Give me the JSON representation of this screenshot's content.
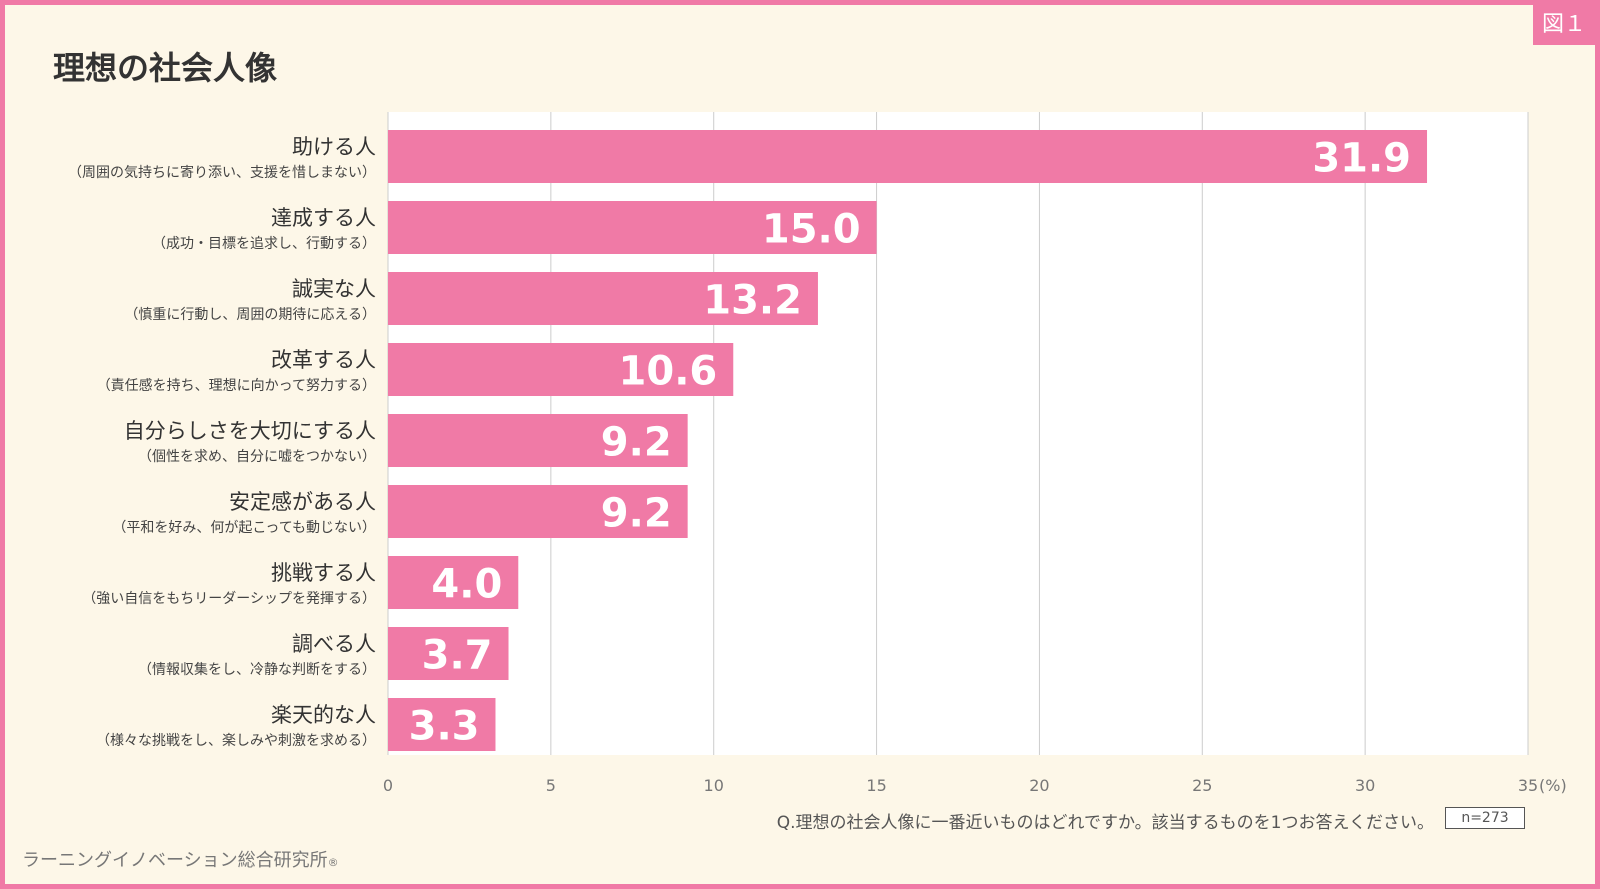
{
  "figure_label": "図１",
  "chart_data": {
    "type": "bar",
    "orientation": "horizontal",
    "title": "理想の社会人像",
    "categories": [
      {
        "label": "助ける人",
        "sublabel": "（周囲の気持ちに寄り添い、支援を惜しまない）"
      },
      {
        "label": "達成する人",
        "sublabel": "（成功・目標を追求し、行動する）"
      },
      {
        "label": "誠実な人",
        "sublabel": "（慎重に行動し、周囲の期待に応える）"
      },
      {
        "label": "改革する人",
        "sublabel": "（責任感を持ち、理想に向かって努力する）"
      },
      {
        "label": "自分らしさを大切にする人",
        "sublabel": "（個性を求め、自分に嘘をつかない）"
      },
      {
        "label": "安定感がある人",
        "sublabel": "（平和を好み、何が起こっても動じない）"
      },
      {
        "label": "挑戦する人",
        "sublabel": "（強い自信をもちリーダーシップを発揮する）"
      },
      {
        "label": "調べる人",
        "sublabel": "（情報収集をし、冷静な判断をする）"
      },
      {
        "label": "楽天的な人",
        "sublabel": "（様々な挑戦をし、楽しみや刺激を求める）"
      }
    ],
    "values": [
      31.9,
      15.0,
      13.2,
      10.6,
      9.2,
      9.2,
      4.0,
      3.7,
      3.3
    ],
    "value_labels": [
      "31.9",
      "15.0",
      "13.2",
      "10.6",
      "9.2",
      "9.2",
      "4.0",
      "3.7",
      "3.3"
    ],
    "xlim": [
      0,
      35
    ],
    "xticks": [
      "0",
      "5",
      "10",
      "15",
      "20",
      "25",
      "30",
      "35"
    ],
    "x_unit": "(%)",
    "grid": true,
    "bar_color": "#f07aa6",
    "background_color": "#fdf7e8",
    "plot_background_color": "#ffffff"
  },
  "question": "Q.理想の社会人像に一番近いものはどれですか。該当するものを1つお答えください。",
  "sample_size": "n=273",
  "brand": "ラーニングイノベーション総合研究所",
  "brand_mark": "®"
}
